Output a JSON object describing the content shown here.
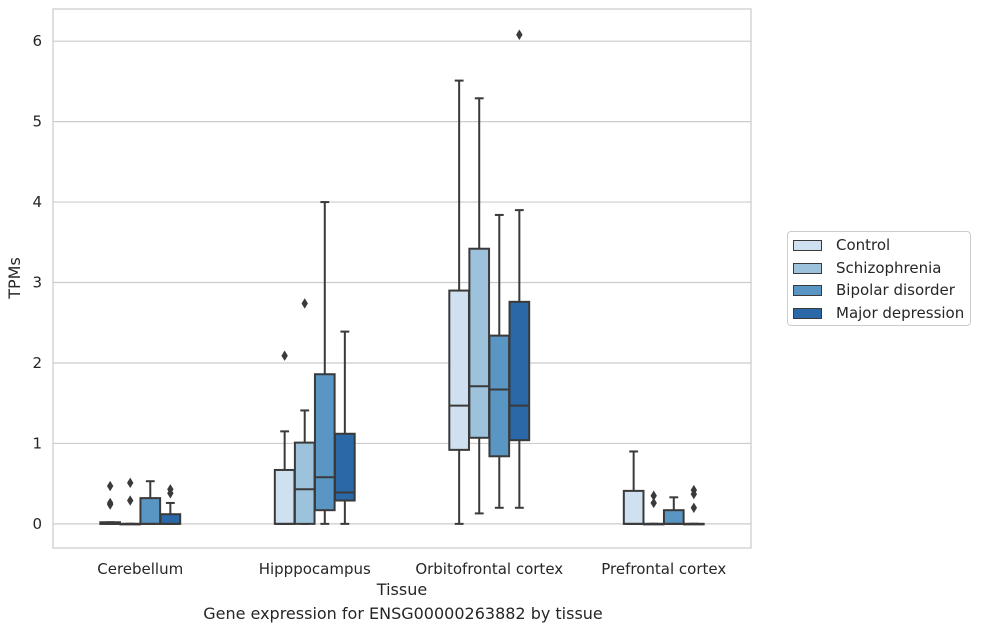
{
  "chart_data": {
    "type": "box",
    "title": "",
    "caption": "Gene expression for ENSG00000263882 by tissue",
    "xlabel": "Tissue",
    "ylabel": "TPMs",
    "ylim": [
      -0.3,
      6.4
    ],
    "yticks": [
      0,
      1,
      2,
      3,
      4,
      5,
      6
    ],
    "grid": true,
    "legend_position": "right",
    "categories": [
      "Cerebellum",
      "Hipppocampus",
      "Orbitofrontal cortex",
      "Prefrontal cortex"
    ],
    "series": [
      {
        "name": "Control",
        "color": "#cfe0f0",
        "boxes": [
          {
            "whislo": 0,
            "q1": 0,
            "med": 0,
            "q3": 0.02,
            "whishi": 0.02,
            "fliers": [
              0.24,
              0.26,
              0.47
            ]
          },
          {
            "whislo": 0,
            "q1": 0,
            "med": 0,
            "q3": 0.67,
            "whishi": 1.15,
            "fliers": [
              2.09
            ]
          },
          {
            "whislo": 0,
            "q1": 0.92,
            "med": 1.47,
            "q3": 2.9,
            "whishi": 5.51,
            "fliers": []
          },
          {
            "whislo": 0,
            "q1": 0,
            "med": 0,
            "q3": 0.41,
            "whishi": 0.9,
            "fliers": []
          }
        ]
      },
      {
        "name": "Schizophrenia",
        "color": "#9cc2dc",
        "boxes": [
          {
            "whislo": 0,
            "q1": 0,
            "med": 0,
            "q3": 0,
            "whishi": 0,
            "fliers": [
              0.29,
              0.51
            ]
          },
          {
            "whislo": 0,
            "q1": 0,
            "med": 0.43,
            "q3": 1.01,
            "whishi": 1.41,
            "fliers": [
              2.74
            ]
          },
          {
            "whislo": 0.13,
            "q1": 1.07,
            "med": 1.71,
            "q3": 3.42,
            "whishi": 5.29,
            "fliers": []
          },
          {
            "whislo": 0,
            "q1": 0,
            "med": 0,
            "q3": 0,
            "whishi": 0,
            "fliers": [
              0.26,
              0.35
            ]
          }
        ]
      },
      {
        "name": "Bipolar disorder",
        "color": "#5996c4",
        "boxes": [
          {
            "whislo": 0,
            "q1": 0,
            "med": 0,
            "q3": 0.32,
            "whishi": 0.53,
            "fliers": []
          },
          {
            "whislo": 0,
            "q1": 0.17,
            "med": 0.58,
            "q3": 1.86,
            "whishi": 4.0,
            "fliers": []
          },
          {
            "whislo": 0.2,
            "q1": 0.84,
            "med": 1.67,
            "q3": 2.34,
            "whishi": 3.84,
            "fliers": []
          },
          {
            "whislo": 0,
            "q1": 0,
            "med": 0,
            "q3": 0.17,
            "whishi": 0.33,
            "fliers": []
          }
        ]
      },
      {
        "name": "Major depression",
        "color": "#2b68a8",
        "boxes": [
          {
            "whislo": 0,
            "q1": 0,
            "med": 0,
            "q3": 0.12,
            "whishi": 0.26,
            "fliers": [
              0.38,
              0.43
            ]
          },
          {
            "whislo": 0,
            "q1": 0.29,
            "med": 0.39,
            "q3": 1.12,
            "whishi": 2.39,
            "fliers": []
          },
          {
            "whislo": 0.2,
            "q1": 1.04,
            "med": 1.47,
            "q3": 2.76,
            "whishi": 3.9,
            "fliers": [
              6.08
            ]
          },
          {
            "whislo": 0,
            "q1": 0,
            "med": 0,
            "q3": 0,
            "whishi": 0,
            "fliers": [
              0.2,
              0.37,
              0.42
            ]
          }
        ]
      }
    ]
  }
}
